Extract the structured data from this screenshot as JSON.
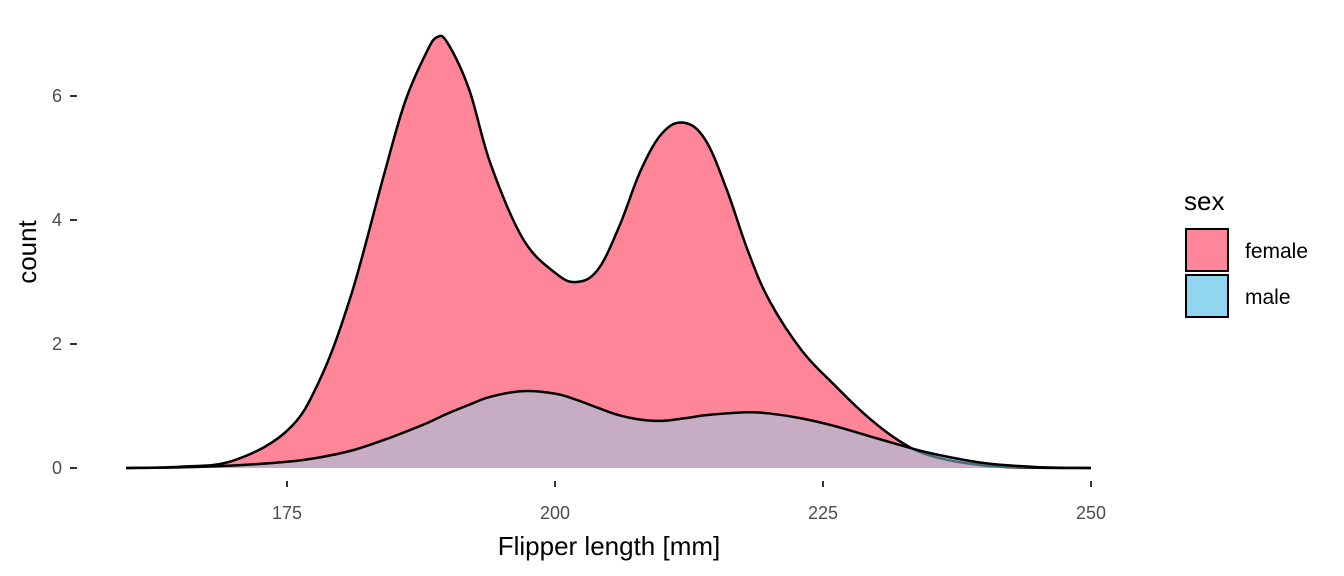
{
  "chart_data": {
    "type": "area",
    "xlabel": "Flipper length [mm]",
    "ylabel": "count",
    "xlim": [
      158,
      251
    ],
    "ylim": [
      0,
      7
    ],
    "x_ticks": [
      175,
      200,
      225,
      250
    ],
    "y_ticks": [
      0,
      2,
      4,
      6
    ],
    "x_tick_labels": [
      "175",
      "200",
      "225",
      "250"
    ],
    "y_tick_labels": [
      "0",
      "2",
      "4",
      "6"
    ],
    "grid": false,
    "legend": {
      "title": "sex",
      "placement": "right",
      "entries": [
        "female",
        "male"
      ]
    },
    "x": [
      160,
      165,
      170,
      175,
      178,
      181,
      184,
      186,
      188,
      189,
      190,
      192,
      194,
      197,
      200,
      202,
      204,
      206,
      208,
      210,
      212,
      214,
      216,
      218,
      220,
      223,
      226,
      229,
      232,
      235,
      240,
      245,
      250
    ],
    "series": [
      {
        "name": "female",
        "color": "#FF8599",
        "values": [
          0.0,
          0.02,
          0.12,
          0.6,
          1.4,
          2.8,
          4.7,
          5.9,
          6.7,
          6.95,
          6.85,
          6.1,
          4.9,
          3.7,
          3.15,
          3.0,
          3.2,
          3.9,
          4.8,
          5.4,
          5.57,
          5.3,
          4.5,
          3.5,
          2.7,
          1.9,
          1.35,
          0.85,
          0.45,
          0.2,
          0.04,
          0.005,
          0.0
        ]
      },
      {
        "name": "male",
        "color": "#8FD6EE",
        "values": [
          0.0,
          0.01,
          0.04,
          0.1,
          0.17,
          0.28,
          0.45,
          0.58,
          0.72,
          0.8,
          0.88,
          1.02,
          1.15,
          1.24,
          1.2,
          1.1,
          0.97,
          0.85,
          0.78,
          0.76,
          0.8,
          0.85,
          0.88,
          0.9,
          0.88,
          0.8,
          0.68,
          0.53,
          0.38,
          0.24,
          0.08,
          0.015,
          0.0
        ]
      }
    ]
  }
}
